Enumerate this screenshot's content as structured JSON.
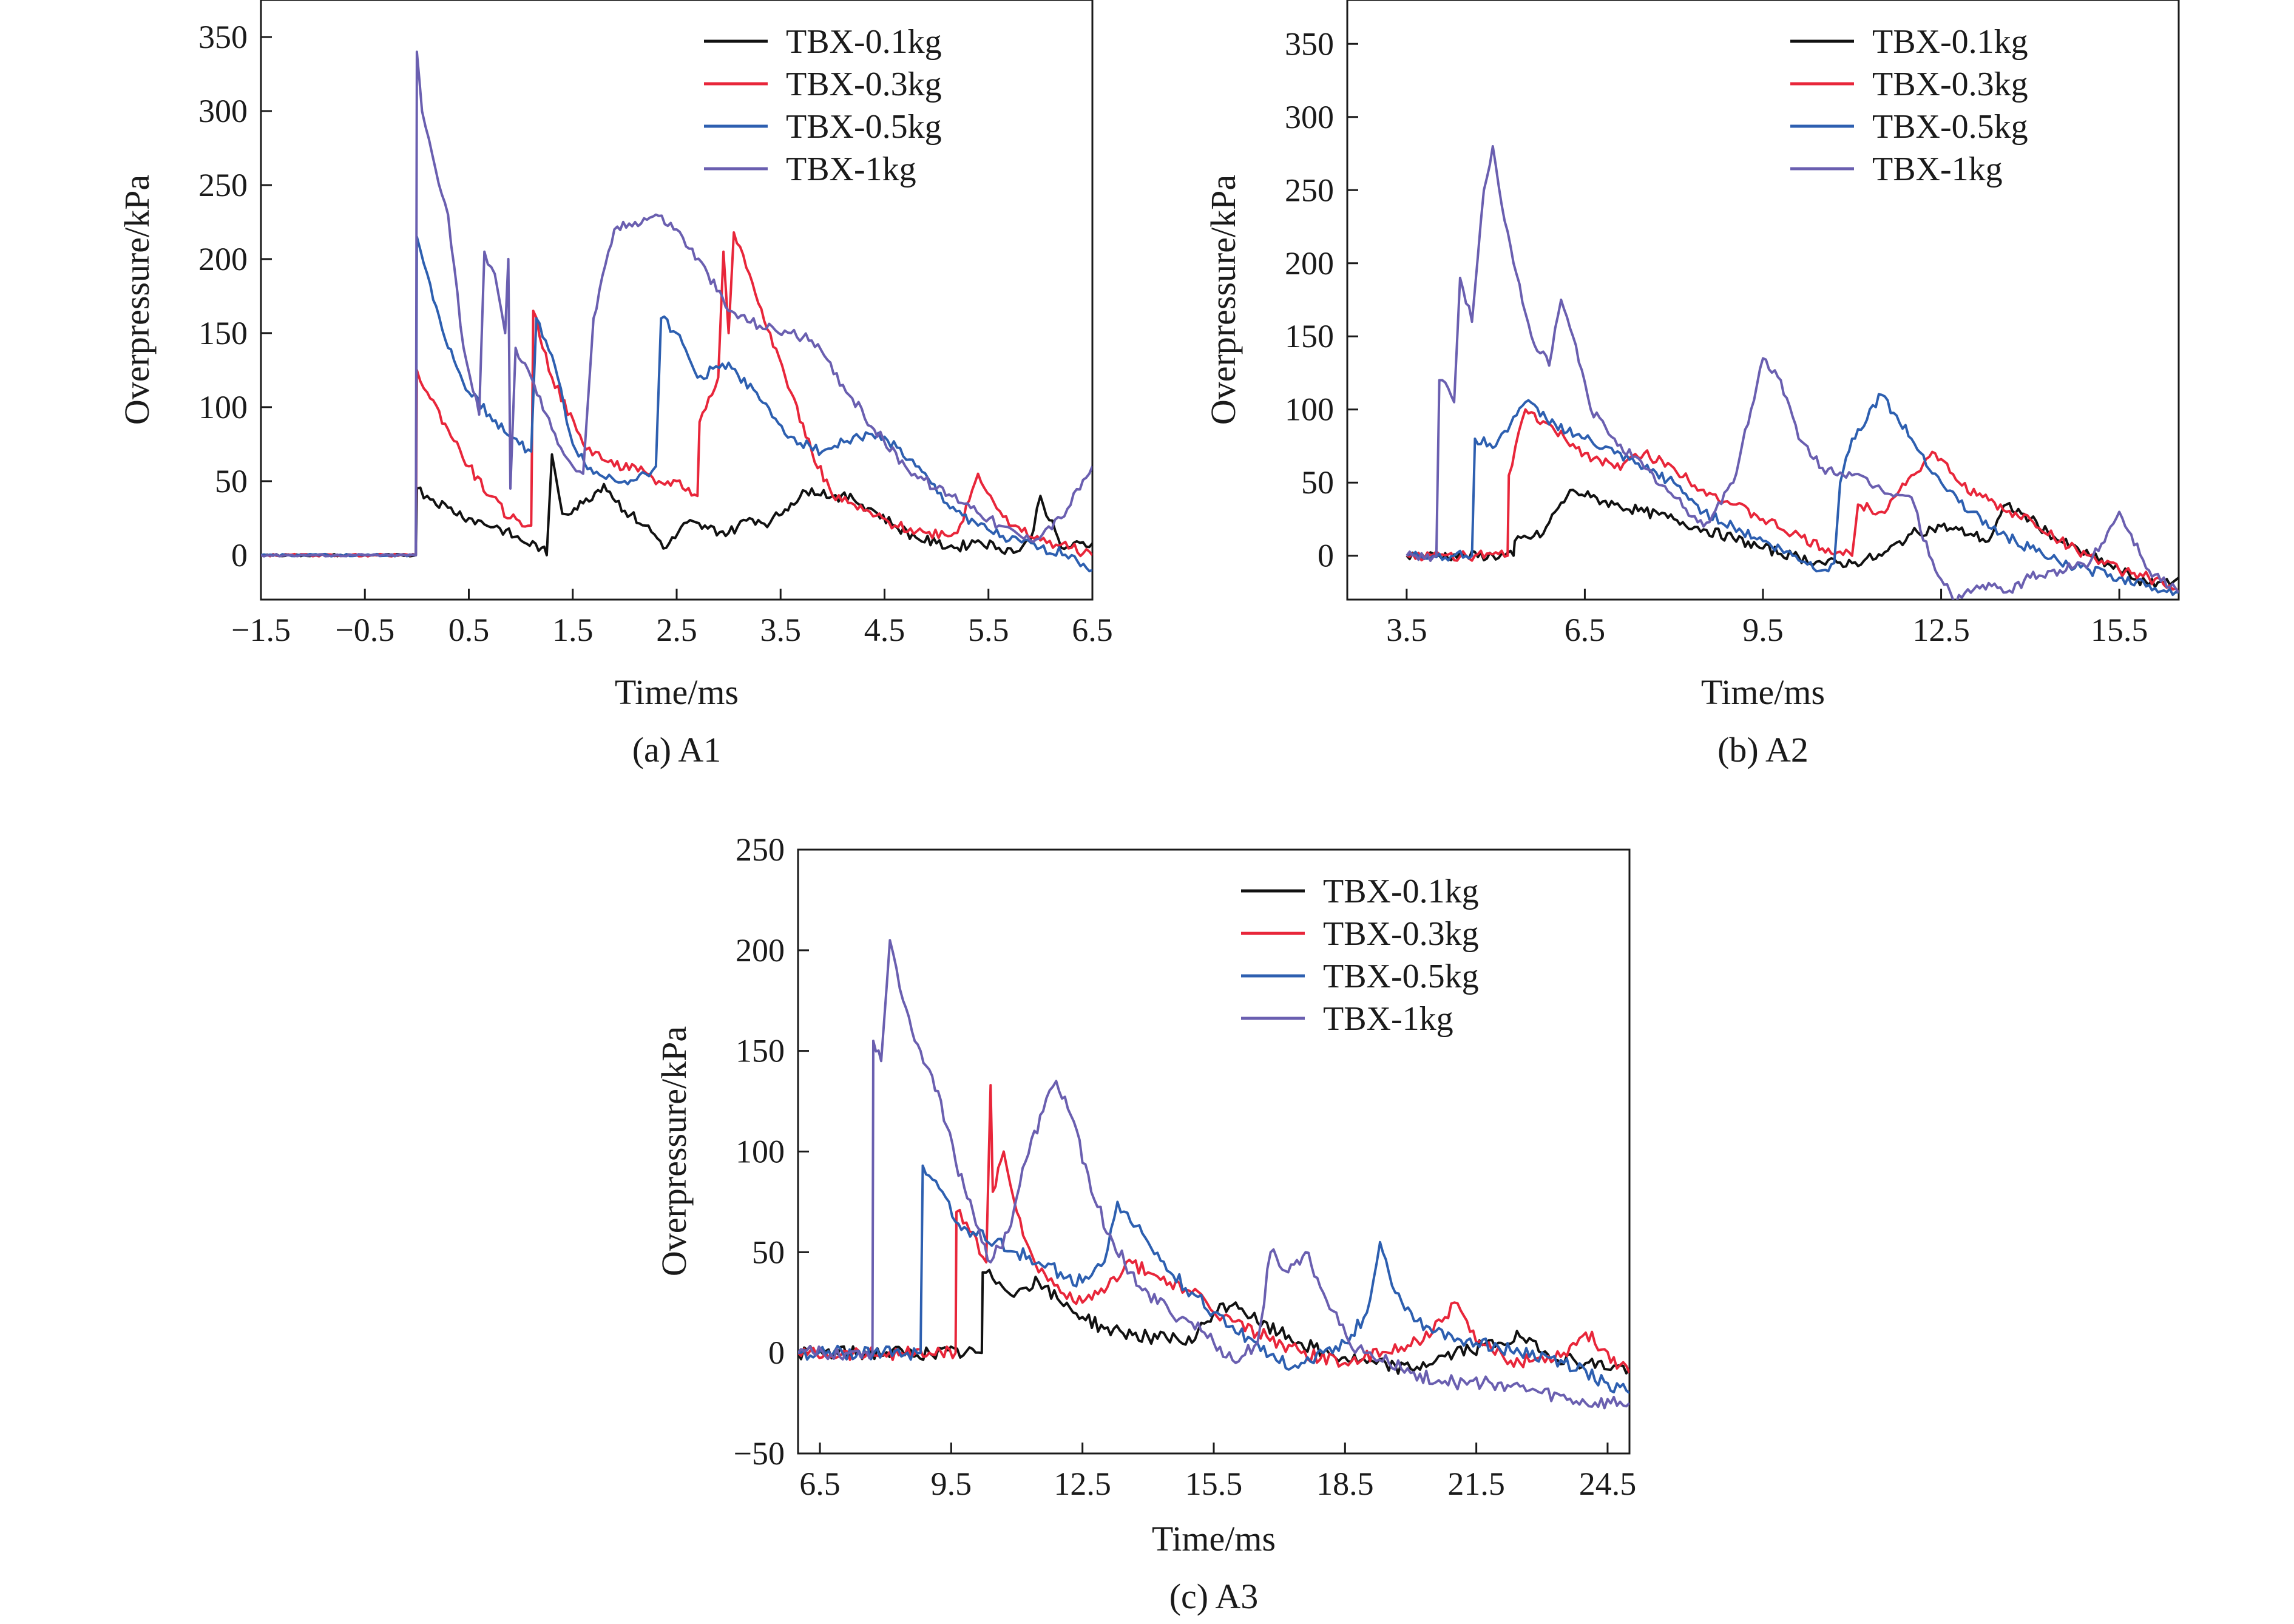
{
  "figure": {
    "panels": [
      "a1",
      "a2",
      "a3"
    ]
  },
  "series_colors": {
    "TBX-0.1kg": "#111111",
    "TBX-0.3kg": "#e8263a",
    "TBX-0.5kg": "#2d5fb0",
    "TBX-1kg": "#6a5fb0"
  },
  "chart_data": [
    {
      "id": "a1",
      "type": "line",
      "caption": "(a) A1",
      "xlabel": "Time/ms",
      "ylabel": "Overpressure/kPa",
      "xlim": [
        -1.5,
        6.5
      ],
      "ylim": [
        -30,
        375
      ],
      "xticks": [
        -1.5,
        -0.5,
        0.5,
        1.5,
        2.5,
        3.5,
        4.5,
        5.5,
        6.5
      ],
      "xtick_labels": [
        "−1.5",
        "−0.5",
        "0.5",
        "1.5",
        "2.5",
        "3.5",
        "4.5",
        "5.5",
        "6.5"
      ],
      "yticks": [
        0,
        50,
        100,
        150,
        200,
        250,
        300,
        350
      ],
      "ytick_labels": [
        "0",
        "50",
        "100",
        "150",
        "200",
        "250",
        "300",
        "350"
      ],
      "legend_position": "top-right",
      "series": [
        {
          "name": "TBX-0.1kg",
          "x": [
            -1.5,
            -0.5,
            -0.01,
            0.0,
            0.1,
            0.3,
            0.5,
            0.8,
            1.0,
            1.2,
            1.25,
            1.3,
            1.4,
            1.6,
            1.8,
            2.0,
            2.2,
            2.4,
            2.6,
            2.8,
            3.0,
            3.2,
            3.4,
            3.6,
            3.8,
            4.0,
            4.2,
            4.4,
            4.6,
            4.8,
            5.0,
            5.2,
            5.4,
            5.6,
            5.8,
            5.9,
            6.0,
            6.2,
            6.5
          ],
          "y": [
            0,
            0,
            0,
            45,
            40,
            32,
            25,
            18,
            10,
            5,
            0,
            68,
            28,
            35,
            48,
            30,
            20,
            5,
            22,
            18,
            15,
            25,
            22,
            35,
            45,
            40,
            38,
            30,
            20,
            12,
            8,
            5,
            10,
            5,
            3,
            10,
            40,
            5,
            8
          ]
        },
        {
          "name": "TBX-0.3kg",
          "x": [
            -1.5,
            -0.5,
            -0.01,
            0.0,
            0.1,
            0.3,
            0.5,
            0.7,
            0.9,
            1.1,
            1.12,
            1.3,
            1.6,
            1.9,
            2.1,
            2.3,
            2.5,
            2.7,
            2.72,
            2.9,
            2.95,
            3.0,
            3.05,
            3.2,
            3.4,
            3.6,
            3.8,
            4.0,
            4.3,
            4.6,
            4.9,
            5.2,
            5.4,
            5.7,
            6.0,
            6.3,
            6.5
          ],
          "y": [
            0,
            0,
            0,
            125,
            110,
            85,
            60,
            40,
            25,
            20,
            165,
            120,
            75,
            60,
            60,
            48,
            50,
            40,
            90,
            120,
            205,
            150,
            218,
            190,
            150,
            110,
            70,
            40,
            30,
            20,
            15,
            15,
            55,
            20,
            10,
            5,
            0
          ]
        },
        {
          "name": "TBX-0.5kg",
          "x": [
            -1.5,
            -0.5,
            -0.01,
            0.0,
            0.1,
            0.3,
            0.5,
            0.7,
            0.9,
            1.1,
            1.15,
            1.3,
            1.5,
            1.7,
            2.0,
            2.2,
            2.3,
            2.35,
            2.5,
            2.7,
            3.0,
            3.3,
            3.6,
            3.9,
            4.2,
            4.5,
            4.8,
            5.1,
            5.4,
            5.7,
            6.0,
            6.3,
            6.5
          ],
          "y": [
            0,
            0,
            0,
            215,
            190,
            140,
            110,
            95,
            80,
            70,
            160,
            135,
            75,
            55,
            50,
            55,
            60,
            160,
            150,
            120,
            130,
            105,
            80,
            70,
            80,
            80,
            60,
            35,
            20,
            10,
            5,
            0,
            -10
          ]
        },
        {
          "name": "TBX-1kg",
          "x": [
            -1.5,
            -0.5,
            -0.01,
            0.0,
            0.05,
            0.15,
            0.3,
            0.45,
            0.6,
            0.65,
            0.75,
            0.85,
            0.88,
            0.9,
            0.95,
            1.1,
            1.3,
            1.5,
            1.6,
            1.7,
            1.9,
            2.1,
            2.3,
            2.5,
            2.8,
            3.0,
            3.3,
            3.6,
            3.8,
            4.1,
            4.4,
            4.7,
            5.0,
            5.3,
            5.6,
            5.9,
            6.2,
            6.5
          ],
          "y": [
            0,
            0,
            0,
            340,
            300,
            270,
            230,
            140,
            95,
            205,
            190,
            150,
            200,
            45,
            140,
            120,
            85,
            60,
            55,
            160,
            220,
            225,
            230,
            220,
            190,
            165,
            155,
            150,
            145,
            115,
            85,
            60,
            45,
            35,
            20,
            10,
            25,
            60
          ]
        }
      ]
    },
    {
      "id": "a2",
      "type": "line",
      "caption": "(b) A2",
      "xlabel": "Time/ms",
      "ylabel": "Overpressure/kPa",
      "xlim": [
        2.5,
        16.5
      ],
      "ylim": [
        -30,
        380
      ],
      "xticks": [
        3.5,
        6.5,
        9.5,
        12.5,
        15.5
      ],
      "xtick_labels": [
        "3.5",
        "6.5",
        "9.5",
        "12.5",
        "15.5"
      ],
      "yticks": [
        0,
        50,
        100,
        150,
        200,
        250,
        300,
        350
      ],
      "ytick_labels": [
        "0",
        "50",
        "100",
        "150",
        "200",
        "250",
        "300",
        "350"
      ],
      "legend_position": "top-right",
      "series": [
        {
          "name": "TBX-0.1kg",
          "x": [
            3.5,
            4.5,
            5.3,
            5.32,
            5.8,
            6.0,
            6.3,
            6.6,
            7.0,
            7.5,
            8.0,
            8.5,
            9.0,
            9.5,
            10.0,
            10.5,
            11.0,
            11.5,
            12.0,
            12.5,
            13.0,
            13.3,
            13.6,
            14.0,
            14.5,
            15.0,
            15.5,
            16.0,
            16.5
          ],
          "y": [
            0,
            0,
            0,
            10,
            15,
            30,
            45,
            40,
            35,
            30,
            25,
            18,
            12,
            5,
            0,
            -5,
            -5,
            0,
            15,
            20,
            15,
            10,
            35,
            25,
            10,
            0,
            -10,
            -20,
            -15
          ]
        },
        {
          "name": "TBX-0.3kg",
          "x": [
            3.5,
            4.5,
            5.2,
            5.22,
            5.5,
            6.0,
            6.5,
            7.0,
            7.5,
            8.0,
            8.5,
            9.0,
            9.5,
            10.0,
            10.5,
            11.0,
            11.1,
            11.5,
            12.0,
            12.4,
            12.8,
            13.2,
            13.6,
            14.0,
            14.5,
            15.0,
            15.5,
            16.0,
            16.5
          ],
          "y": [
            0,
            0,
            0,
            55,
            100,
            85,
            70,
            60,
            70,
            60,
            45,
            35,
            25,
            15,
            5,
            0,
            35,
            30,
            55,
            70,
            50,
            40,
            30,
            25,
            10,
            0,
            -10,
            -15,
            -25
          ]
        },
        {
          "name": "TBX-0.5kg",
          "x": [
            3.5,
            4.5,
            4.6,
            4.65,
            5.0,
            5.3,
            5.5,
            6.0,
            6.5,
            7.0,
            7.5,
            8.0,
            8.5,
            9.0,
            9.5,
            10.0,
            10.5,
            10.7,
            10.8,
            11.0,
            11.5,
            12.0,
            12.5,
            13.0,
            13.5,
            14.0,
            14.5,
            15.0,
            15.5,
            16.0,
            16.5
          ],
          "y": [
            0,
            0,
            0,
            80,
            75,
            95,
            105,
            90,
            80,
            70,
            60,
            50,
            30,
            20,
            10,
            0,
            -10,
            -5,
            50,
            80,
            110,
            80,
            50,
            30,
            15,
            5,
            -5,
            -10,
            -15,
            -20,
            -25
          ]
        },
        {
          "name": "TBX-1kg",
          "x": [
            3.5,
            4.0,
            4.05,
            4.1,
            4.3,
            4.4,
            4.6,
            4.8,
            4.95,
            5.1,
            5.3,
            5.6,
            5.9,
            6.1,
            6.3,
            6.6,
            7.0,
            7.5,
            8.0,
            8.5,
            9.0,
            9.3,
            9.5,
            9.8,
            10.1,
            10.5,
            11.0,
            11.5,
            12.0,
            12.3,
            12.7,
            13.2,
            13.6,
            14.0,
            14.5,
            15.0,
            15.5,
            16.0,
            16.5
          ],
          "y": [
            0,
            0,
            120,
            120,
            105,
            190,
            160,
            250,
            280,
            240,
            200,
            150,
            130,
            175,
            150,
            100,
            80,
            60,
            40,
            20,
            50,
            100,
            135,
            120,
            80,
            60,
            55,
            45,
            40,
            0,
            -30,
            -20,
            -25,
            -15,
            -10,
            -5,
            30,
            -10,
            -25
          ]
        }
      ]
    },
    {
      "id": "a3",
      "type": "line",
      "caption": "(c) A3",
      "xlabel": "Time/ms",
      "ylabel": "Overpressure/kPa",
      "xlim": [
        6.0,
        25.0
      ],
      "ylim": [
        -50,
        250
      ],
      "xticks": [
        6.5,
        9.5,
        12.5,
        15.5,
        18.5,
        21.5,
        24.5
      ],
      "xtick_labels": [
        "6.5",
        "9.5",
        "12.5",
        "15.5",
        "18.5",
        "21.5",
        "24.5"
      ],
      "yticks": [
        -50,
        0,
        50,
        100,
        150,
        200,
        250
      ],
      "ytick_labels": [
        "−50",
        "0",
        "50",
        "100",
        "150",
        "200",
        "250"
      ],
      "legend_position": "top-right",
      "series": [
        {
          "name": "TBX-0.1kg",
          "x": [
            6.0,
            9.0,
            10.2,
            10.22,
            10.6,
            11.0,
            11.5,
            12.0,
            13.0,
            14.0,
            15.0,
            15.5,
            16.0,
            16.5,
            17.0,
            18.0,
            19.0,
            20.0,
            21.0,
            22.0,
            22.5,
            23.0,
            24.0,
            25.0
          ],
          "y": [
            0,
            0,
            0,
            40,
            35,
            30,
            35,
            25,
            12,
            8,
            5,
            20,
            25,
            15,
            10,
            0,
            -5,
            -8,
            0,
            5,
            8,
            0,
            -5,
            -8
          ]
        },
        {
          "name": "TBX-0.3kg",
          "x": [
            6.0,
            9.0,
            9.6,
            9.62,
            10.0,
            10.3,
            10.4,
            10.45,
            10.7,
            11.0,
            11.5,
            12.0,
            12.5,
            13.0,
            13.5,
            14.0,
            14.5,
            15.0,
            15.5,
            16.5,
            17.5,
            18.5,
            19.5,
            20.5,
            21.0,
            21.5,
            22.5,
            23.5,
            24.0,
            25.0
          ],
          "y": [
            0,
            0,
            0,
            70,
            60,
            45,
            133,
            80,
            100,
            70,
            40,
            30,
            25,
            30,
            45,
            40,
            35,
            30,
            20,
            10,
            0,
            -5,
            0,
            10,
            25,
            5,
            -5,
            0,
            10,
            -10
          ]
        },
        {
          "name": "TBX-0.5kg",
          "x": [
            6.0,
            8.5,
            8.8,
            8.85,
            9.3,
            9.6,
            10.0,
            10.5,
            11.0,
            11.5,
            12.0,
            12.5,
            13.0,
            13.3,
            13.6,
            14.0,
            14.5,
            15.0,
            15.5,
            16.0,
            16.5,
            17.0,
            17.5,
            18.0,
            18.5,
            19.0,
            19.3,
            19.5,
            19.8,
            20.5,
            21.5,
            22.5,
            23.5,
            24.5,
            25.0
          ],
          "y": [
            0,
            0,
            0,
            93,
            80,
            65,
            60,
            55,
            50,
            45,
            40,
            35,
            45,
            75,
            65,
            55,
            40,
            30,
            20,
            10,
            5,
            -5,
            -5,
            0,
            5,
            20,
            55,
            40,
            25,
            10,
            5,
            0,
            -5,
            -15,
            -20
          ]
        },
        {
          "name": "TBX-1kg",
          "x": [
            6.0,
            7.5,
            7.7,
            7.72,
            7.9,
            8.1,
            8.4,
            8.8,
            9.2,
            9.6,
            10.0,
            10.4,
            10.8,
            11.2,
            11.6,
            11.9,
            12.3,
            12.7,
            13.2,
            13.6,
            14.0,
            14.5,
            15.0,
            15.5,
            16.0,
            16.5,
            16.8,
            17.2,
            17.6,
            18.0,
            18.3,
            18.6,
            19.0,
            19.5,
            20.0,
            21.0,
            22.0,
            23.0,
            24.0,
            25.0
          ],
          "y": [
            0,
            0,
            0,
            155,
            145,
            205,
            175,
            150,
            130,
            95,
            70,
            45,
            60,
            95,
            120,
            135,
            115,
            80,
            55,
            40,
            30,
            20,
            15,
            5,
            -5,
            5,
            50,
            40,
            50,
            30,
            20,
            5,
            0,
            -5,
            -10,
            -15,
            -15,
            -20,
            -25,
            -25
          ]
        }
      ]
    }
  ]
}
